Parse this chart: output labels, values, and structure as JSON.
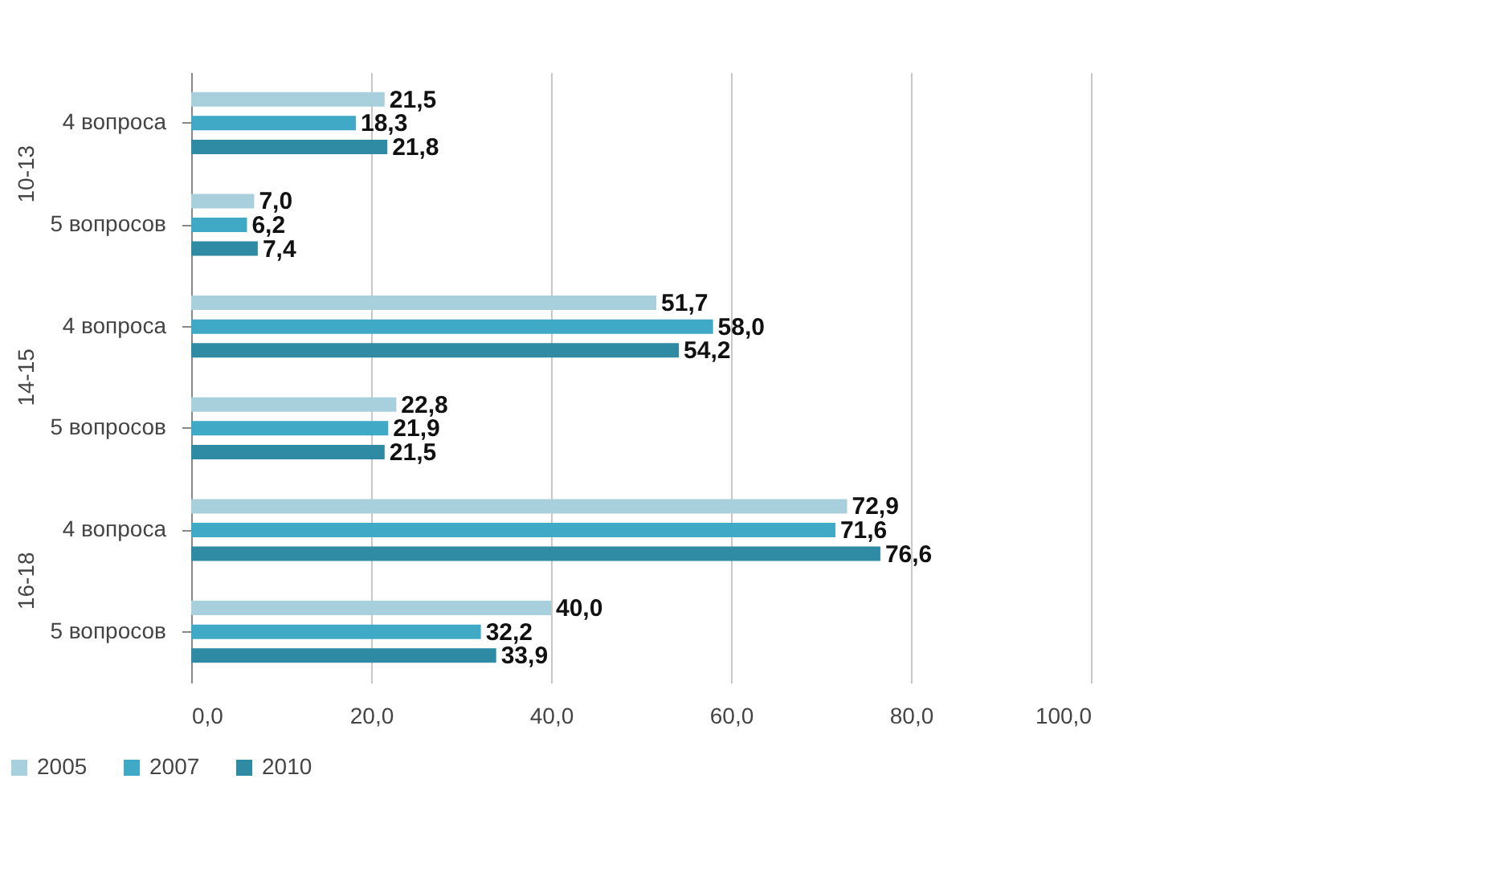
{
  "chart_data": {
    "type": "bar",
    "orientation": "horizontal",
    "categories": [
      "4 вопроса",
      "5 вопросов",
      "4 вопроса",
      "5 вопросов",
      "4 вопроса",
      "5 вопросов"
    ],
    "annotations": [
      "10-13",
      "14-15",
      "16-18"
    ],
    "series": [
      {
        "name": "2005",
        "color": "#a8d0dc",
        "values": [
          21.5,
          7.0,
          51.7,
          22.8,
          72.9,
          40.0
        ],
        "value_labels": [
          "21,5",
          "7,0",
          "51,7",
          "22,8",
          "72,9",
          "40,0"
        ]
      },
      {
        "name": "2007",
        "color": "#3fa9c6",
        "values": [
          18.3,
          6.2,
          58.0,
          21.9,
          71.6,
          32.2
        ],
        "value_labels": [
          "18,3",
          "6,2",
          "58,0",
          "21,9",
          "71,6",
          "32,2"
        ]
      },
      {
        "name": "2010",
        "color": "#2e8ba3",
        "values": [
          21.8,
          7.4,
          54.2,
          21.5,
          76.6,
          33.9
        ],
        "value_labels": [
          "21,8",
          "7,4",
          "54,2",
          "21,5",
          "76,6",
          "33,9"
        ]
      }
    ],
    "xlim": [
      0,
      100
    ],
    "xticks": [
      {
        "value": 0,
        "label": "0,0"
      },
      {
        "value": 20,
        "label": "20,0"
      },
      {
        "value": 40,
        "label": "40,0"
      },
      {
        "value": 60,
        "label": "60,0"
      },
      {
        "value": 80,
        "label": "80,0"
      },
      {
        "value": 100,
        "label": "100,0"
      }
    ],
    "grid": "x",
    "legend": "bottom"
  }
}
